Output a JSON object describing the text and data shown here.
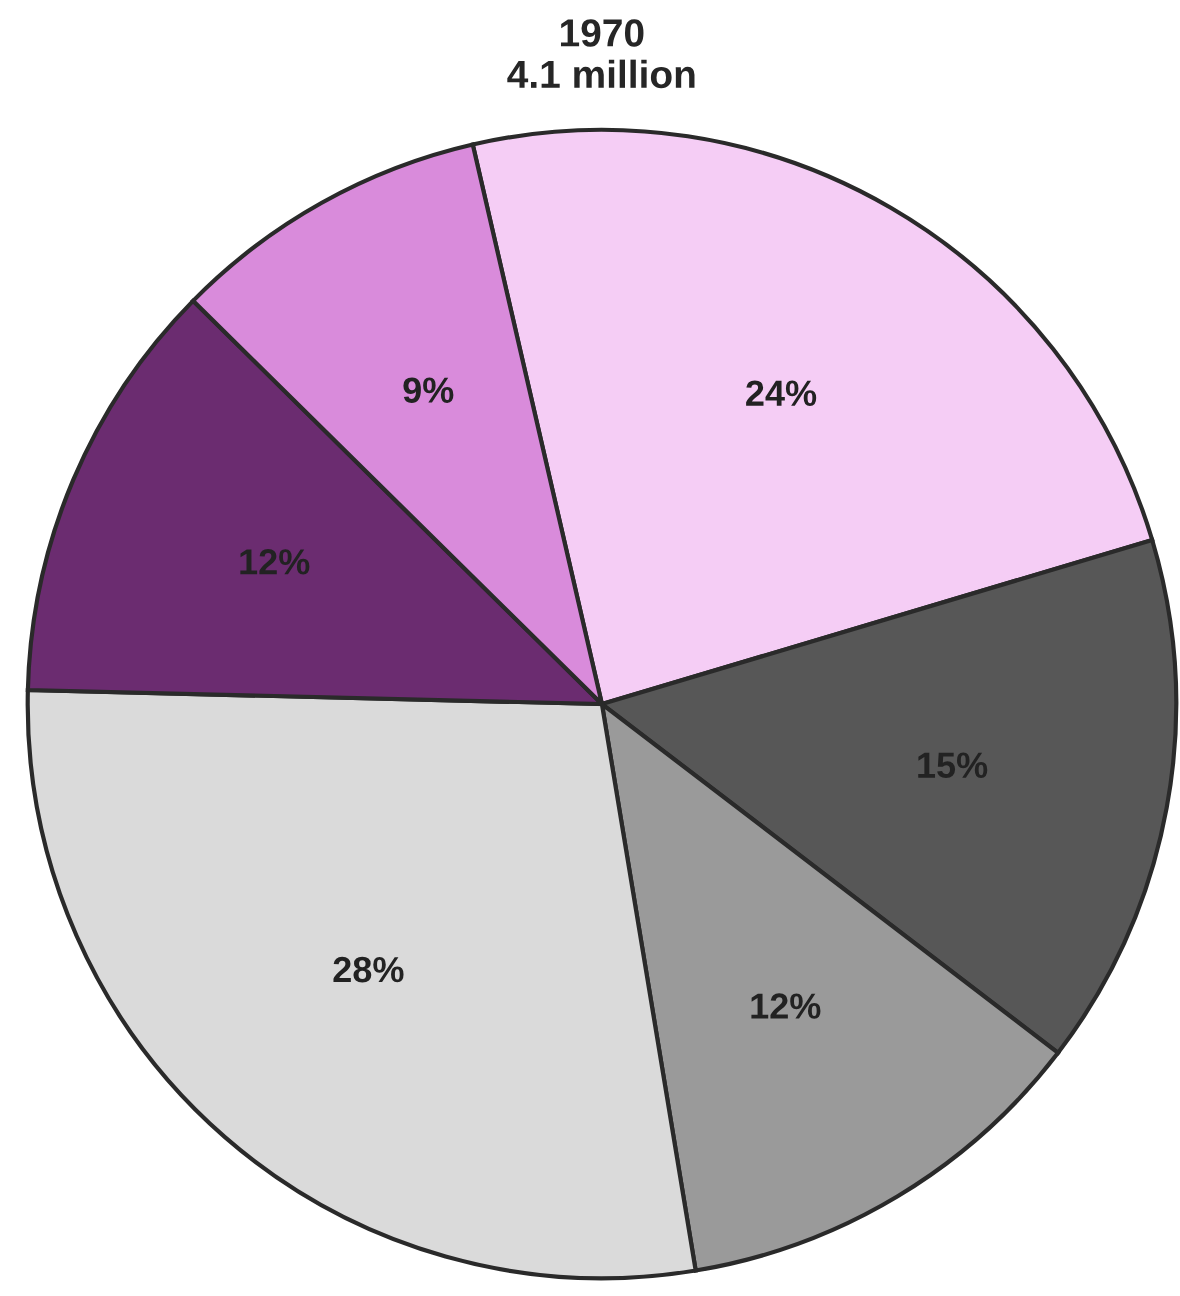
{
  "chart_data": {
    "type": "pie",
    "title": "1970",
    "subtitle": "4.1 million",
    "categories": [
      null,
      null,
      null,
      null,
      null,
      null
    ],
    "values": [
      24,
      15,
      12,
      28,
      12,
      9
    ],
    "value_labels": [
      "24%",
      "15%",
      "12%",
      "28%",
      "12%",
      "9%"
    ],
    "colors": [
      "#f5cdf5",
      "#575757",
      "#9a9a9a",
      "#dadada",
      "#6b2c70",
      "#d98bdb"
    ],
    "legend": false
  }
}
